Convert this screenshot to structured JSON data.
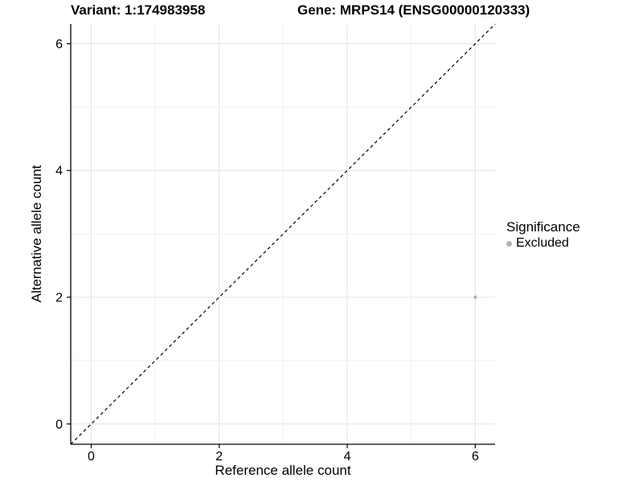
{
  "chart_data": {
    "type": "scatter",
    "titles": [
      "Variant: 1:174983958",
      "Gene: MRPS14 (ENSG00000120333)"
    ],
    "xlabel": "Reference allele count",
    "ylabel": "Alternative allele count",
    "xlim": [
      -0.32,
      6.31
    ],
    "ylim": [
      -0.32,
      6.31
    ],
    "x_ticks": [
      0,
      2,
      4,
      6
    ],
    "y_ticks": [
      0,
      2,
      4,
      6
    ],
    "x_minor_ticks": [
      1,
      3,
      5
    ],
    "y_minor_ticks": [
      1,
      3,
      5
    ],
    "series": [
      {
        "name": "Excluded",
        "color": "#b5b5b5",
        "points": [
          {
            "x": 6,
            "y": 2
          }
        ]
      }
    ],
    "reference_line": {
      "type": "identity",
      "slope": 1,
      "intercept": 0,
      "style": "dashed",
      "color": "#000000"
    },
    "legend": {
      "title": "Significance",
      "position": "right",
      "items": [
        {
          "label": "Excluded",
          "color": "#b5b5b5",
          "marker": "circle"
        }
      ]
    },
    "grid": {
      "major": true,
      "minor": true
    },
    "colors": {
      "background": "#ffffff",
      "grid_major": "#e4e4e4",
      "grid_minor": "#efefef",
      "axis": "#000000",
      "tick_text": "#000000"
    }
  }
}
